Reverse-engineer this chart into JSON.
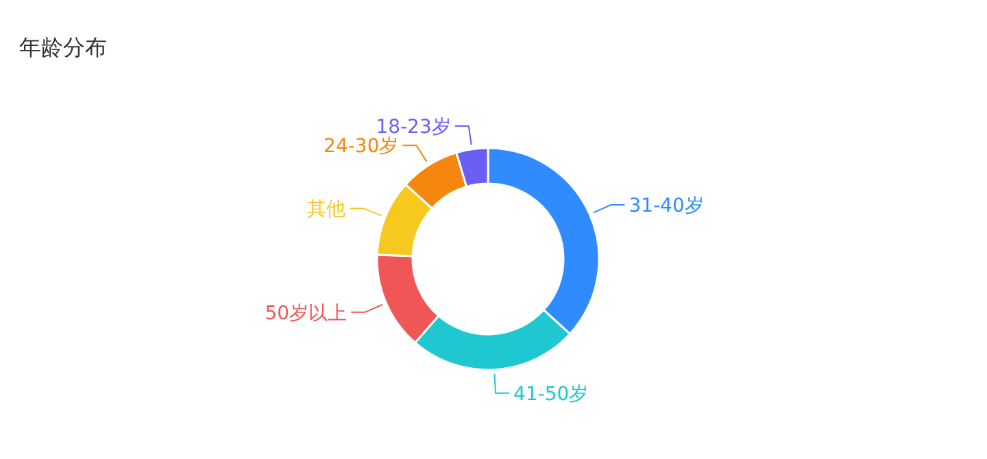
{
  "chart_data": {
    "type": "donut",
    "title": "年龄分布",
    "categories": [
      "31-40岁",
      "41-50岁",
      "50岁以上",
      "其他",
      "24-30岁",
      "18-23岁"
    ],
    "values": [
      36.8,
      24.6,
      14.2,
      11.1,
      8.7,
      4.6
    ],
    "colors": [
      "#2f8bff",
      "#1fc8d0",
      "#f05656",
      "#f7c81e",
      "#f5870f",
      "#6a5ef5"
    ]
  }
}
